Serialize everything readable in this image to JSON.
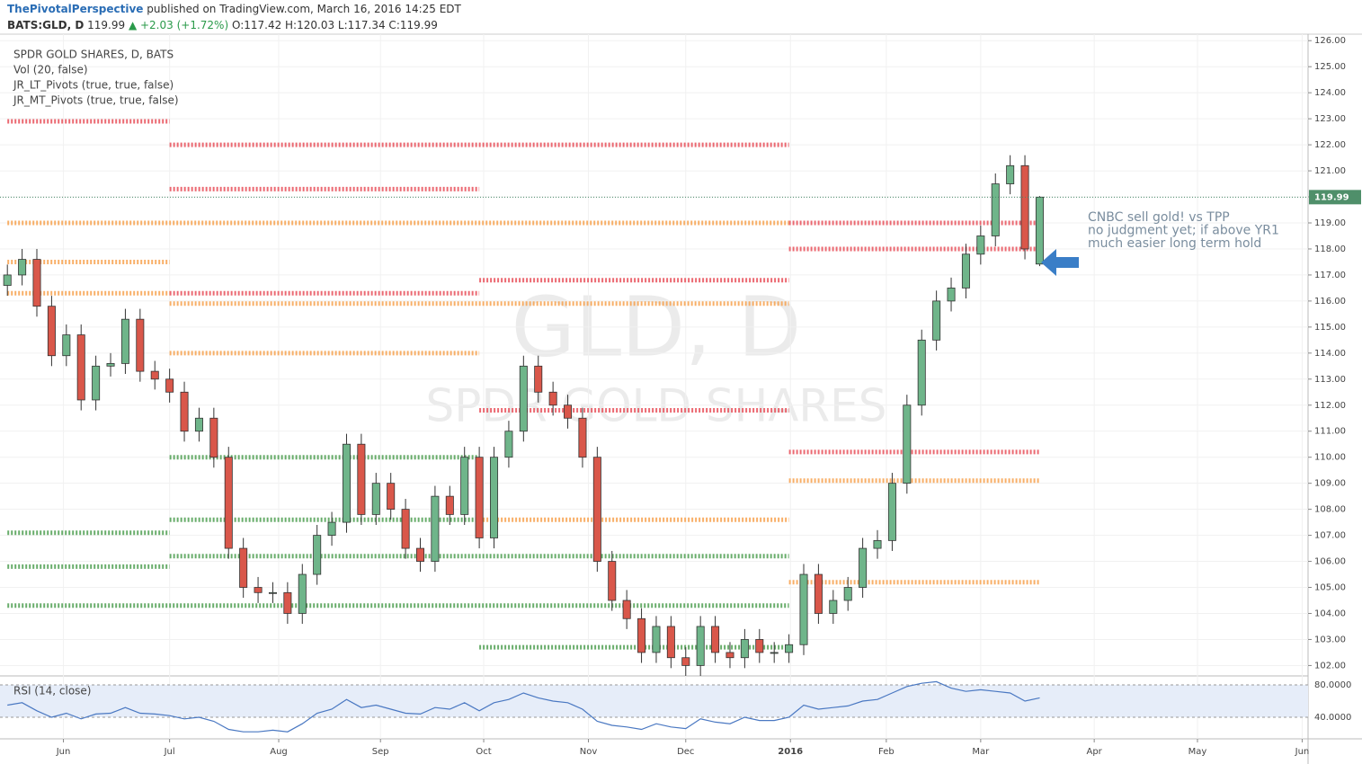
{
  "header": {
    "author": "ThePivotalPerspective",
    "published": "published on TradingView.com, March 16, 2016 14:25 EDT",
    "symbol": "BATS:GLD, D",
    "price": "119.99",
    "change": "▲ +2.03 (+1.72%)",
    "ohlc": "O:117.42 H:120.03 L:117.34 C:119.99"
  },
  "legend": [
    "SPDR GOLD SHARES, D, BATS",
    "Vol (20, false)",
    "JR_LT_Pivots (true, true, false)",
    "JR_MT_Pivots (true, true, false)"
  ],
  "watermark": [
    "GLD, D",
    "SPDR GOLD SHARES"
  ],
  "chart_data": [
    {
      "type": "candlestick",
      "up_color": "#6fb58a",
      "down_color": "#d9574a",
      "grid": true,
      "open": [
        116.6,
        117.0,
        117.6,
        115.8,
        113.9,
        114.7,
        112.2,
        113.5,
        113.6,
        115.3,
        113.3,
        113.0,
        112.5,
        111.0,
        111.5,
        110.0,
        106.5,
        105.0,
        104.8,
        104.8,
        104.0,
        105.5,
        107.0,
        107.5,
        110.5,
        107.8,
        109.0,
        108.0,
        106.5,
        106.0,
        108.5,
        107.8,
        110.0,
        106.9,
        110.0,
        111.0,
        113.5,
        112.5,
        112.0,
        111.5,
        110.0,
        106.0,
        104.5,
        103.8,
        102.5,
        103.5,
        102.3,
        102.0,
        103.5,
        102.5,
        102.3,
        103.0,
        102.5,
        102.5,
        102.8,
        105.5,
        104.0,
        104.5,
        105.0,
        106.5,
        106.8,
        109.0,
        112.0,
        114.5,
        116.0,
        116.5,
        117.8,
        118.5,
        120.5,
        121.2,
        117.42
      ],
      "high": [
        117.4,
        118.0,
        118.0,
        116.2,
        115.1,
        115.1,
        113.9,
        114.0,
        115.7,
        115.7,
        113.7,
        113.4,
        112.9,
        111.9,
        111.9,
        110.4,
        106.9,
        105.4,
        105.2,
        105.2,
        105.9,
        107.4,
        107.9,
        110.9,
        110.9,
        109.4,
        109.4,
        108.4,
        106.9,
        108.9,
        108.9,
        110.4,
        110.4,
        110.4,
        111.4,
        113.9,
        113.9,
        112.9,
        112.4,
        111.9,
        110.4,
        106.4,
        104.9,
        104.2,
        103.9,
        103.9,
        102.7,
        103.9,
        103.9,
        102.9,
        103.4,
        103.4,
        102.9,
        103.2,
        105.9,
        105.9,
        104.9,
        105.4,
        106.9,
        107.2,
        109.4,
        112.4,
        114.9,
        116.4,
        116.9,
        118.2,
        118.9,
        120.9,
        121.6,
        121.6,
        120.03
      ],
      "low": [
        116.2,
        116.6,
        115.4,
        113.5,
        113.5,
        111.8,
        111.8,
        113.1,
        113.2,
        112.9,
        112.6,
        112.1,
        110.6,
        110.6,
        109.6,
        106.1,
        104.6,
        104.4,
        104.4,
        103.6,
        103.6,
        105.1,
        106.6,
        107.1,
        107.4,
        107.4,
        107.6,
        106.1,
        105.6,
        105.6,
        107.4,
        107.4,
        106.5,
        106.5,
        109.6,
        110.6,
        112.1,
        111.6,
        111.1,
        109.6,
        105.6,
        104.1,
        103.4,
        102.1,
        102.1,
        101.9,
        101.6,
        101.6,
        102.1,
        101.9,
        101.9,
        102.1,
        102.1,
        102.1,
        102.4,
        103.6,
        103.6,
        104.1,
        104.6,
        106.1,
        106.4,
        108.6,
        111.6,
        114.1,
        115.6,
        116.1,
        117.4,
        118.1,
        120.1,
        117.6,
        117.34
      ],
      "close": [
        117.0,
        117.6,
        115.8,
        113.9,
        114.7,
        112.2,
        113.5,
        113.6,
        115.3,
        113.3,
        113.0,
        112.5,
        111.0,
        111.5,
        110.0,
        106.5,
        105.0,
        104.8,
        104.8,
        104.0,
        105.5,
        107.0,
        107.5,
        110.5,
        107.8,
        109.0,
        108.0,
        106.5,
        106.0,
        108.5,
        107.8,
        110.0,
        106.9,
        110.0,
        111.0,
        113.5,
        112.5,
        112.0,
        111.5,
        110.0,
        106.0,
        104.5,
        103.8,
        102.5,
        103.5,
        102.3,
        102.0,
        103.5,
        102.5,
        102.3,
        103.0,
        102.5,
        102.5,
        102.8,
        105.5,
        104.0,
        104.5,
        105.0,
        106.5,
        106.8,
        109.0,
        112.0,
        114.5,
        116.0,
        116.5,
        117.8,
        118.5,
        120.5,
        121.2,
        118.0,
        119.99
      ],
      "levels": [
        {
          "value": 122.9,
          "from": 0,
          "to": 11,
          "color": "#e8505a"
        },
        {
          "value": 122.0,
          "from": 11,
          "to": 53,
          "color": "#e8505a"
        },
        {
          "value": 120.3,
          "from": 11,
          "to": 32,
          "color": "#e8505a"
        },
        {
          "value": 119.0,
          "from": 0,
          "to": 53,
          "color": "#f7a24e"
        },
        {
          "value": 117.5,
          "from": 0,
          "to": 11,
          "color": "#f7a24e"
        },
        {
          "value": 116.3,
          "from": 0,
          "to": 11,
          "color": "#f7a24e"
        },
        {
          "value": 116.3,
          "from": 11,
          "to": 32,
          "color": "#e8505a"
        },
        {
          "value": 115.9,
          "from": 11,
          "to": 53,
          "color": "#f7a24e"
        },
        {
          "value": 116.8,
          "from": 32,
          "to": 53,
          "color": "#e8505a"
        },
        {
          "value": 114.0,
          "from": 11,
          "to": 32,
          "color": "#f7a24e"
        },
        {
          "value": 111.8,
          "from": 32,
          "to": 53,
          "color": "#e8505a"
        },
        {
          "value": 110.0,
          "from": 11,
          "to": 32,
          "color": "#4f9f52"
        },
        {
          "value": 107.6,
          "from": 11,
          "to": 32,
          "color": "#4f9f52"
        },
        {
          "value": 107.6,
          "from": 32,
          "to": 53,
          "color": "#f7a24e"
        },
        {
          "value": 107.1,
          "from": 0,
          "to": 11,
          "color": "#4f9f52"
        },
        {
          "value": 106.2,
          "from": 11,
          "to": 53,
          "color": "#4f9f52"
        },
        {
          "value": 105.8,
          "from": 0,
          "to": 11,
          "color": "#4f9f52"
        },
        {
          "value": 104.3,
          "from": 0,
          "to": 53,
          "color": "#4f9f52"
        },
        {
          "value": 102.7,
          "from": 32,
          "to": 53,
          "color": "#4f9f52"
        },
        {
          "value": 119.0,
          "from": 53,
          "to": 70,
          "color": "#e8505a"
        },
        {
          "value": 118.0,
          "from": 53,
          "to": 70,
          "color": "#e8505a"
        },
        {
          "value": 110.2,
          "from": 53,
          "to": 70,
          "color": "#e8505a"
        },
        {
          "value": 109.1,
          "from": 53,
          "to": 70,
          "color": "#f7a24e"
        },
        {
          "value": 105.2,
          "from": 53,
          "to": 70,
          "color": "#f7a24e"
        }
      ],
      "annotation": [
        "CNBC sell gold! vs TPP",
        "no judgment yet; if above YR1",
        "much easier long term hold"
      ],
      "xlim": [
        -0.5,
        88.2
      ],
      "xticks": [
        {
          "value": 3.8,
          "label": "Jun"
        },
        {
          "value": 11,
          "label": "Jul"
        },
        {
          "value": 18.4,
          "label": "Aug"
        },
        {
          "value": 25.3,
          "label": "Sep"
        },
        {
          "value": 32.3,
          "label": "Oct"
        },
        {
          "value": 39.4,
          "label": "Nov"
        },
        {
          "value": 46,
          "label": "Dec"
        },
        {
          "value": 53.1,
          "label": "2016"
        },
        {
          "value": 59.6,
          "label": "Feb"
        },
        {
          "value": 66,
          "label": "Mar"
        },
        {
          "value": 73.7,
          "label": "Apr"
        },
        {
          "value": 80.7,
          "label": "May"
        },
        {
          "value": 87.8,
          "label": "Jun"
        }
      ],
      "ylim": [
        101.6,
        126.25
      ],
      "yticks": [
        {
          "value": 102,
          "label": "102.00"
        },
        {
          "value": 103,
          "label": "103.00"
        },
        {
          "value": 104,
          "label": "104.00"
        },
        {
          "value": 105,
          "label": "105.00"
        },
        {
          "value": 106,
          "label": "106.00"
        },
        {
          "value": 107,
          "label": "107.00"
        },
        {
          "value": 108,
          "label": "108.00"
        },
        {
          "value": 109,
          "label": "109.00"
        },
        {
          "value": 110,
          "label": "110.00"
        },
        {
          "value": 111,
          "label": "111.00"
        },
        {
          "value": 112,
          "label": "112.00"
        },
        {
          "value": 113,
          "label": "113.00"
        },
        {
          "value": 114,
          "label": "114.00"
        },
        {
          "value": 115,
          "label": "115.00"
        },
        {
          "value": 116,
          "label": "116.00"
        },
        {
          "value": 117,
          "label": "117.00"
        },
        {
          "value": 118,
          "label": "118.00"
        },
        {
          "value": 119,
          "label": "119.00"
        },
        {
          "value": 120,
          "label": "120.00"
        },
        {
          "value": 121,
          "label": "121.00"
        },
        {
          "value": 122,
          "label": "122.00"
        },
        {
          "value": 123,
          "label": "123.00"
        },
        {
          "value": 124,
          "label": "124.00"
        },
        {
          "value": 125,
          "label": "125.00"
        },
        {
          "value": 126,
          "label": "126.00"
        }
      ]
    },
    {
      "type": "line",
      "title": "RSI (14, close)",
      "color": "#4a78c2",
      "band_color": "#e6edf9",
      "values": [
        55,
        58,
        48,
        40,
        45,
        38,
        44,
        45,
        52,
        45,
        44,
        42,
        38,
        40,
        35,
        25,
        22,
        22,
        24,
        22,
        32,
        45,
        50,
        62,
        52,
        55,
        50,
        45,
        44,
        52,
        50,
        58,
        48,
        58,
        62,
        70,
        64,
        60,
        58,
        50,
        35,
        30,
        28,
        25,
        32,
        28,
        26,
        38,
        34,
        32,
        40,
        36,
        36,
        40,
        55,
        50,
        52,
        54,
        60,
        62,
        70,
        78,
        82,
        84,
        76,
        72,
        74,
        72,
        70,
        60,
        64
      ],
      "ylim": [
        13.3,
        91.1
      ],
      "yticks": [
        {
          "value": 40,
          "label": "40.0000"
        },
        {
          "value": 80,
          "label": "80.0000"
        }
      ]
    }
  ]
}
